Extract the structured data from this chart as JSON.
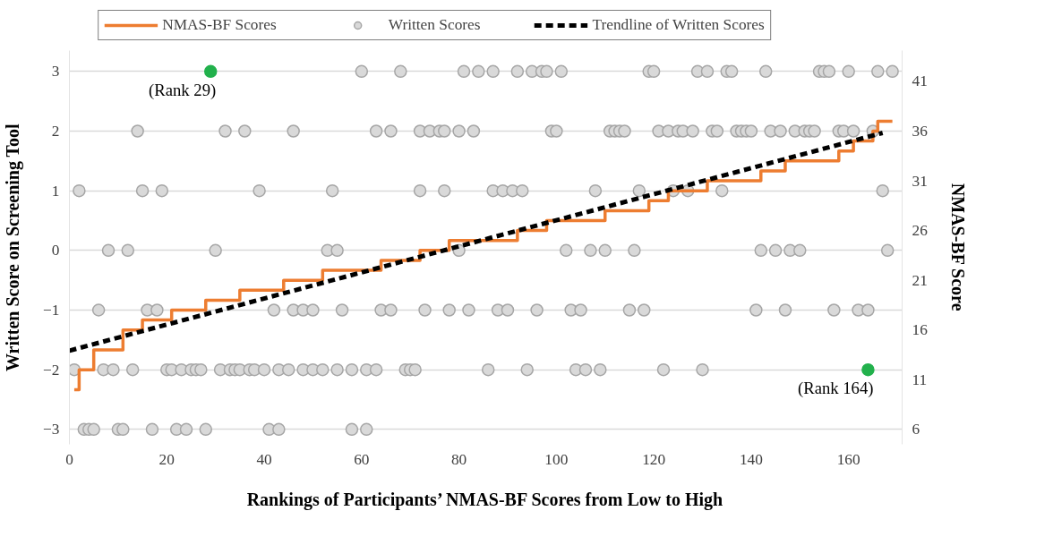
{
  "chart_data": {
    "type": "scatter",
    "xlabel": "Rankings of Participants’ NMAS-BF Scores from Low to High",
    "ylabel": "Written Score on Screening Tool",
    "y2label": "NMAS-BF Score",
    "xlim": [
      0,
      171
    ],
    "xticks": [
      0,
      20,
      40,
      60,
      80,
      100,
      120,
      140,
      160
    ],
    "ylim": [
      -3.25,
      3.35
    ],
    "yticks": [
      -3,
      -2,
      -1,
      0,
      1,
      2,
      3
    ],
    "y2lim": [
      4.5,
      44.1
    ],
    "y2ticks": [
      6,
      11,
      16,
      21,
      26,
      31,
      36,
      41
    ],
    "grid": "y",
    "legend": "top",
    "annotations": [
      {
        "text": "(Rank 29)",
        "x": 29,
        "y": 3
      },
      {
        "text": "(Rank 164)",
        "x": 164,
        "y": -2
      }
    ],
    "series": [
      {
        "name": "NMAS-BF Scores",
        "type": "step",
        "axis": "y2",
        "color": "#ed7d31",
        "line_style": "solid",
        "x": [
          1,
          2,
          5,
          11,
          15,
          21,
          28,
          35,
          44,
          52,
          64,
          72,
          78,
          92,
          98,
          110,
          119,
          123,
          131,
          142,
          147,
          158,
          161,
          165,
          166,
          169
        ],
        "values": [
          10,
          12,
          14,
          16,
          17,
          18,
          19,
          20,
          21,
          22,
          23,
          24,
          25,
          26,
          27,
          28,
          29,
          30,
          31,
          32,
          33,
          34,
          35,
          36,
          37,
          37
        ]
      },
      {
        "name": "Written Scores",
        "color": "#d9d9d9",
        "marker": "circle",
        "x": [
          60,
          68,
          81,
          84,
          87,
          92,
          95,
          97,
          98,
          101,
          119,
          120,
          129,
          131,
          135,
          136,
          143,
          154,
          155,
          156,
          160,
          166,
          169,
          14,
          32,
          36,
          46,
          63,
          66,
          72,
          74,
          76,
          77,
          80,
          83,
          99,
          100,
          111,
          112,
          113,
          114,
          121,
          123,
          125,
          126,
          128,
          132,
          133,
          137,
          138,
          139,
          140,
          144,
          146,
          149,
          151,
          152,
          153,
          158,
          159,
          161,
          165,
          2,
          15,
          19,
          39,
          54,
          72,
          77,
          87,
          89,
          91,
          93,
          108,
          117,
          124,
          127,
          134,
          167,
          8,
          12,
          30,
          53,
          55,
          80,
          102,
          107,
          110,
          116,
          142,
          145,
          148,
          150,
          168,
          6,
          16,
          18,
          42,
          46,
          48,
          50,
          56,
          64,
          66,
          73,
          78,
          82,
          88,
          90,
          96,
          103,
          105,
          115,
          118,
          141,
          147,
          157,
          162,
          164,
          1,
          7,
          9,
          13,
          20,
          21,
          23,
          25,
          26,
          27,
          31,
          33,
          34,
          35,
          37,
          38,
          40,
          43,
          45,
          48,
          50,
          52,
          55,
          58,
          61,
          63,
          69,
          70,
          71,
          86,
          94,
          104,
          106,
          109,
          122,
          130,
          3,
          4,
          5,
          10,
          11,
          17,
          22,
          24,
          28,
          41,
          43,
          58,
          61
        ],
        "values": [
          3,
          3,
          3,
          3,
          3,
          3,
          3,
          3,
          3,
          3,
          3,
          3,
          3,
          3,
          3,
          3,
          3,
          3,
          3,
          3,
          3,
          3,
          3,
          2,
          2,
          2,
          2,
          2,
          2,
          2,
          2,
          2,
          2,
          2,
          2,
          2,
          2,
          2,
          2,
          2,
          2,
          2,
          2,
          2,
          2,
          2,
          2,
          2,
          2,
          2,
          2,
          2,
          2,
          2,
          2,
          2,
          2,
          2,
          2,
          2,
          2,
          2,
          1,
          1,
          1,
          1,
          1,
          1,
          1,
          1,
          1,
          1,
          1,
          1,
          1,
          1,
          1,
          1,
          1,
          0,
          0,
          0,
          0,
          0,
          0,
          0,
          0,
          0,
          0,
          0,
          0,
          0,
          0,
          0,
          -1,
          -1,
          -1,
          -1,
          -1,
          -1,
          -1,
          -1,
          -1,
          -1,
          -1,
          -1,
          -1,
          -1,
          -1,
          -1,
          -1,
          -1,
          -1,
          -1,
          -1,
          -1,
          -1,
          -1,
          -1,
          -2,
          -2,
          -2,
          -2,
          -2,
          -2,
          -2,
          -2,
          -2,
          -2,
          -2,
          -2,
          -2,
          -2,
          -2,
          -2,
          -2,
          -2,
          -2,
          -2,
          -2,
          -2,
          -2,
          -2,
          -2,
          -2,
          -2,
          -2,
          -2,
          -2,
          -2,
          -2,
          -2,
          -2,
          -2,
          -2,
          -3,
          -3,
          -3,
          -3,
          -3,
          -3,
          -3,
          -3,
          -3,
          -3,
          -3,
          -3,
          -3
        ]
      },
      {
        "name": "Trendline of Written Scores",
        "type": "line",
        "color": "#000000",
        "line_style": "dashed",
        "x": [
          0,
          167
        ],
        "values": [
          -1.68,
          1.97
        ]
      },
      {
        "color": "#22b14c",
        "marker": "circle",
        "x": [
          29,
          164
        ],
        "values": [
          3,
          -2
        ]
      }
    ]
  }
}
